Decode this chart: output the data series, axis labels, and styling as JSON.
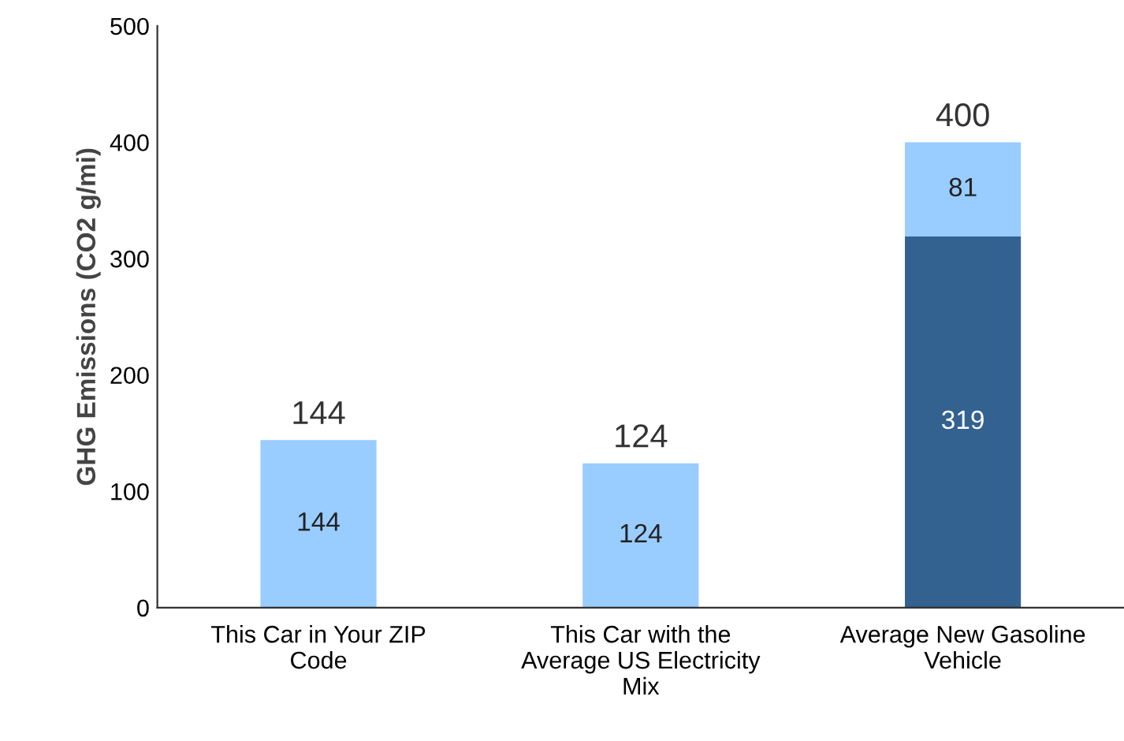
{
  "chart_data": {
    "type": "bar",
    "stacked": true,
    "ylabel": "GHG Emissions (CO2 g/mi)",
    "categories": [
      "This Car in Your ZIP\nCode",
      "This Car with the\nAverage US Electricity\nMix",
      "Average New Gasoline\nVehicle"
    ],
    "series": [
      {
        "color": "#336291",
        "values": [
          null,
          null,
          319
        ]
      },
      {
        "color": "#99ccff",
        "values": [
          144,
          124,
          81
        ]
      }
    ],
    "data_labels": true,
    "totals": [
      "144",
      "124",
      "400"
    ],
    "ylim": [
      0,
      500
    ],
    "yticks": [
      0,
      100,
      200,
      300,
      400,
      500
    ],
    "grid": false
  }
}
